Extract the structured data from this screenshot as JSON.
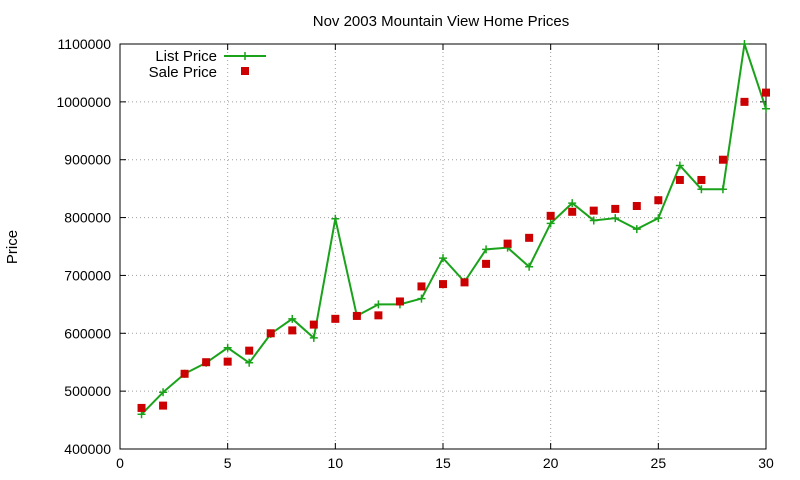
{
  "chart_data": {
    "type": "line",
    "title": "Nov 2003 Mountain View Home Prices",
    "xlabel": "",
    "ylabel": "Price",
    "xlim": [
      0,
      30
    ],
    "ylim": [
      400000,
      1100000
    ],
    "xticks": [
      0,
      5,
      10,
      15,
      20,
      25,
      30
    ],
    "yticks": [
      400000,
      500000,
      600000,
      700000,
      800000,
      900000,
      1000000,
      1100000
    ],
    "grid": true,
    "legend_position": "top-left",
    "series": [
      {
        "name": "List Price",
        "style": "linespoints",
        "marker": "plus",
        "color": "#1aa31a",
        "x": [
          1,
          2,
          3,
          4,
          5,
          6,
          7,
          8,
          9,
          10,
          11,
          12,
          13,
          14,
          15,
          16,
          17,
          18,
          19,
          20,
          21,
          22,
          23,
          24,
          25,
          26,
          27,
          28,
          29,
          30
        ],
        "y": [
          460000,
          498000,
          530000,
          549000,
          575000,
          549000,
          599000,
          625000,
          592000,
          798000,
          630000,
          650000,
          650000,
          660000,
          730000,
          689000,
          745000,
          748000,
          715000,
          790000,
          825000,
          795000,
          799000,
          780000,
          799000,
          890000,
          849000,
          849000,
          1100000,
          988000
        ]
      },
      {
        "name": "Sale Price",
        "style": "points",
        "marker": "square",
        "color": "#cc0000",
        "x": [
          1,
          2,
          3,
          4,
          5,
          6,
          7,
          8,
          9,
          10,
          11,
          12,
          13,
          14,
          15,
          16,
          17,
          18,
          19,
          20,
          21,
          22,
          23,
          24,
          25,
          26,
          27,
          28,
          29,
          30
        ],
        "y": [
          471000,
          475000,
          530000,
          550000,
          551000,
          570000,
          600000,
          605000,
          615000,
          625000,
          630000,
          631000,
          655000,
          681000,
          685000,
          688000,
          720000,
          755000,
          765000,
          803000,
          810000,
          812000,
          815000,
          820000,
          830000,
          865000,
          865000,
          900000,
          1000000,
          1016000
        ]
      }
    ]
  }
}
